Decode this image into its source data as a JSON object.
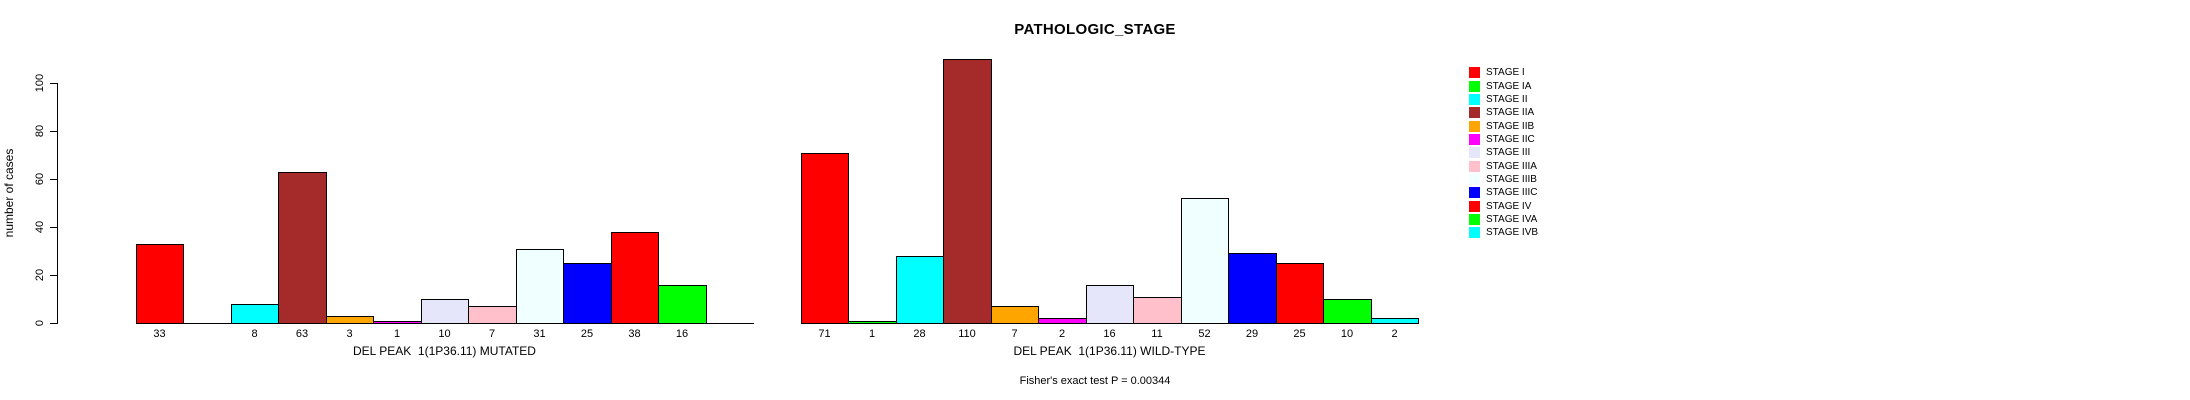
{
  "title": "PATHOLOGIC_STAGE",
  "footer": "Fisher's exact test P = 0.00344",
  "y_axis": {
    "label": "number of cases",
    "ticks": [
      0,
      20,
      40,
      60,
      80,
      100
    ]
  },
  "legend": {
    "position": "right",
    "entries": [
      {
        "label": "STAGE I",
        "color": "#FF0000"
      },
      {
        "label": "STAGE IA",
        "color": "#00FF00"
      },
      {
        "label": "STAGE II",
        "color": "#00FFFF"
      },
      {
        "label": "STAGE IIA",
        "color": "#A52A2A"
      },
      {
        "label": "STAGE IIB",
        "color": "#FFA500"
      },
      {
        "label": "STAGE IIC",
        "color": "#FF00FF"
      },
      {
        "label": "STAGE III",
        "color": "#E6E6FA"
      },
      {
        "label": "STAGE IIIA",
        "color": "#FFC0CB"
      },
      {
        "label": "STAGE IIIB",
        "color": "#F0FFFF"
      },
      {
        "label": "STAGE IIIC",
        "color": "#0000FF"
      },
      {
        "label": "STAGE IV",
        "color": "#FF0000"
      },
      {
        "label": "STAGE IVA",
        "color": "#00FF00"
      },
      {
        "label": "STAGE IVB",
        "color": "#00FFFF"
      }
    ]
  },
  "chart_data": [
    {
      "type": "bar",
      "xlabel": "DEL PEAK  1(1P36.11) MUTATED",
      "ylabel": "number of cases",
      "categories": [
        "STAGE I",
        "STAGE IA",
        "STAGE II",
        "STAGE IIA",
        "STAGE IIB",
        "STAGE IIC",
        "STAGE III",
        "STAGE IIIA",
        "STAGE IIIB",
        "STAGE IIIC",
        "STAGE IV",
        "STAGE IVA",
        "STAGE IVB"
      ],
      "values": [
        33,
        0,
        8,
        63,
        3,
        1,
        10,
        7,
        31,
        25,
        38,
        16,
        0
      ],
      "colors": [
        "#FF0000",
        "#00FF00",
        "#00FFFF",
        "#A52A2A",
        "#FFA500",
        "#FF00FF",
        "#E6E6FA",
        "#FFC0CB",
        "#F0FFFF",
        "#0000FF",
        "#FF0000",
        "#00FF00",
        "#00FFFF"
      ],
      "ylim": [
        0,
        112
      ],
      "grid": false,
      "value_labels_below_bars": true,
      "zero_values_unlabeled": true
    },
    {
      "type": "bar",
      "xlabel": "DEL PEAK  1(1P36.11) WILD-TYPE",
      "ylabel": "number of cases",
      "categories": [
        "STAGE I",
        "STAGE IA",
        "STAGE II",
        "STAGE IIA",
        "STAGE IIB",
        "STAGE IIC",
        "STAGE III",
        "STAGE IIIA",
        "STAGE IIIB",
        "STAGE IIIC",
        "STAGE IV",
        "STAGE IVA",
        "STAGE IVB"
      ],
      "values": [
        71,
        1,
        28,
        110,
        7,
        2,
        16,
        11,
        52,
        29,
        25,
        10,
        2
      ],
      "colors": [
        "#FF0000",
        "#00FF00",
        "#00FFFF",
        "#A52A2A",
        "#FFA500",
        "#FF00FF",
        "#E6E6FA",
        "#FFC0CB",
        "#F0FFFF",
        "#0000FF",
        "#FF0000",
        "#00FF00",
        "#00FFFF"
      ],
      "ylim": [
        0,
        112
      ],
      "grid": false,
      "value_labels_below_bars": true,
      "zero_values_unlabeled": true
    }
  ]
}
